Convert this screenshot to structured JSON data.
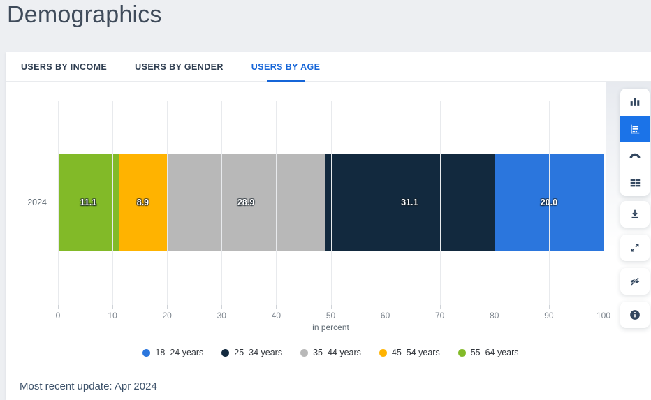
{
  "header": {
    "title": "Demographics"
  },
  "tabs": [
    {
      "label": "USERS BY INCOME",
      "active": false
    },
    {
      "label": "USERS BY GENDER",
      "active": false
    },
    {
      "label": "USERS BY AGE",
      "active": true
    }
  ],
  "chart_data": {
    "type": "bar",
    "orientation": "horizontal-stacked",
    "title": "Users by age",
    "categories": [
      "2024"
    ],
    "series": [
      {
        "name": "18–24 years",
        "color": "#2b76dd",
        "values": [
          20.0
        ]
      },
      {
        "name": "25–34 years",
        "color": "#12293e",
        "values": [
          31.1
        ]
      },
      {
        "name": "35–44 years",
        "color": "#b8b8b8",
        "values": [
          28.9
        ]
      },
      {
        "name": "45–54 years",
        "color": "#ffb300",
        "values": [
          8.9
        ]
      },
      {
        "name": "55–64 years",
        "color": "#82ba28",
        "values": [
          11.1
        ]
      }
    ],
    "segment_display_order": [
      "55–64 years",
      "45–54 years",
      "35–44 years",
      "25–34 years",
      "18–24 years"
    ],
    "value_labels_left_to_right": [
      "11.1",
      "8.9",
      "28.9",
      "31.1",
      "20.0"
    ],
    "xlabel": "in percent",
    "xlim": [
      0,
      100
    ],
    "xticks": [
      0,
      10,
      20,
      30,
      40,
      50,
      60,
      70,
      80,
      90,
      100
    ],
    "grid": true,
    "legend_position": "bottom"
  },
  "footer": {
    "update_text": "Most recent update: Apr 2024"
  },
  "toolbar": {
    "selected": "horizontal-bar-chart-icon",
    "chart_type_icons": [
      "column-chart-icon",
      "horizontal-bar-chart-icon",
      "gauge-chart-icon",
      "table-icon"
    ],
    "action_icons": [
      "download-icon",
      "fullscreen-icon",
      "hide-icon",
      "info-icon"
    ],
    "selected_bg": "#1b73e8",
    "icon_color": "#33475f"
  },
  "colors": {
    "page_bg": "#edeff2",
    "card_bg": "#ffffff",
    "accent_blue": "#1565d8",
    "title_text": "#3f4b5a",
    "footer_text": "#3e536b"
  }
}
